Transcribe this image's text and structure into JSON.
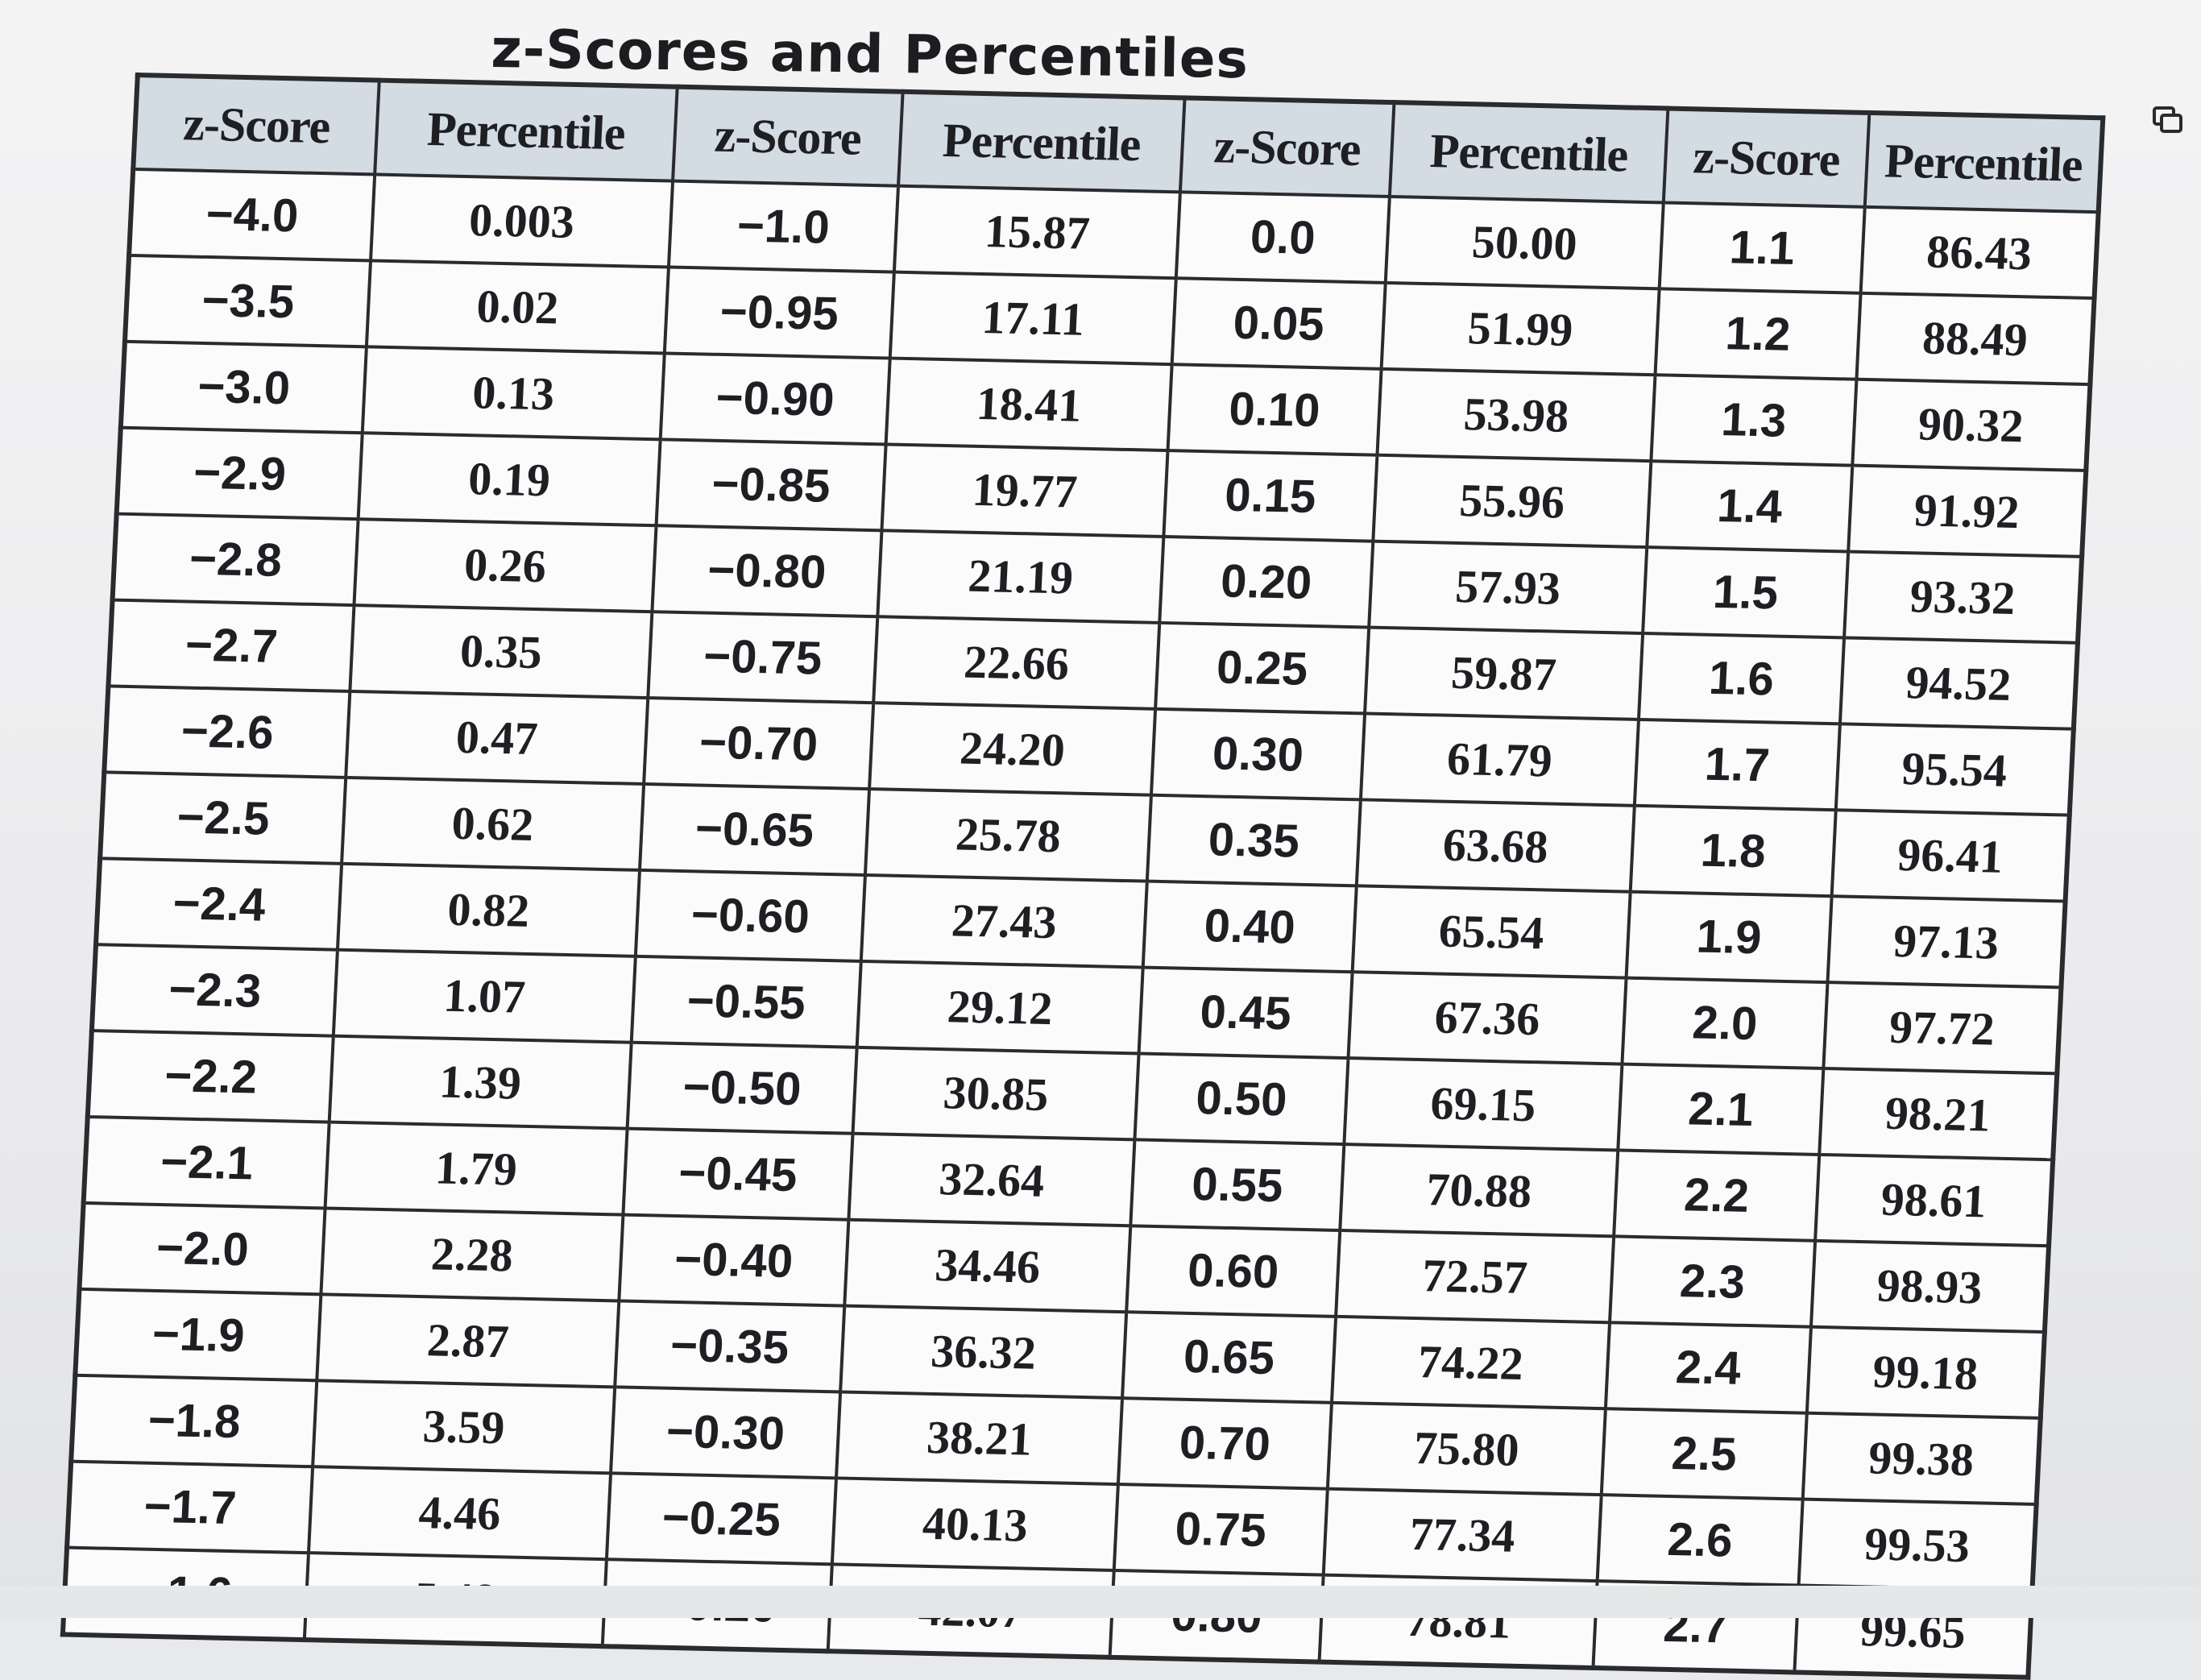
{
  "document": {
    "title": "z-Scores and Percentiles",
    "headers": [
      "z-Score",
      "Percentile",
      "z-Score",
      "Percentile",
      "z-Score",
      "Percentile",
      "z-Score",
      "Percentile"
    ],
    "rows": [
      [
        "−4.0",
        "0.003",
        "−1.0",
        "15.87",
        "0.0",
        "50.00",
        "1.1",
        "86.43"
      ],
      [
        "−3.5",
        "0.02",
        "−0.95",
        "17.11",
        "0.05",
        "51.99",
        "1.2",
        "88.49"
      ],
      [
        "−3.0",
        "0.13",
        "−0.90",
        "18.41",
        "0.10",
        "53.98",
        "1.3",
        "90.32"
      ],
      [
        "−2.9",
        "0.19",
        "−0.85",
        "19.77",
        "0.15",
        "55.96",
        "1.4",
        "91.92"
      ],
      [
        "−2.8",
        "0.26",
        "−0.80",
        "21.19",
        "0.20",
        "57.93",
        "1.5",
        "93.32"
      ],
      [
        "−2.7",
        "0.35",
        "−0.75",
        "22.66",
        "0.25",
        "59.87",
        "1.6",
        "94.52"
      ],
      [
        "−2.6",
        "0.47",
        "−0.70",
        "24.20",
        "0.30",
        "61.79",
        "1.7",
        "95.54"
      ],
      [
        "−2.5",
        "0.62",
        "−0.65",
        "25.78",
        "0.35",
        "63.68",
        "1.8",
        "96.41"
      ],
      [
        "−2.4",
        "0.82",
        "−0.60",
        "27.43",
        "0.40",
        "65.54",
        "1.9",
        "97.13"
      ],
      [
        "−2.3",
        "1.07",
        "−0.55",
        "29.12",
        "0.45",
        "67.36",
        "2.0",
        "97.72"
      ],
      [
        "−2.2",
        "1.39",
        "−0.50",
        "30.85",
        "0.50",
        "69.15",
        "2.1",
        "98.21"
      ],
      [
        "−2.1",
        "1.79",
        "−0.45",
        "32.64",
        "0.55",
        "70.88",
        "2.2",
        "98.61"
      ],
      [
        "−2.0",
        "2.28",
        "−0.40",
        "34.46",
        "0.60",
        "72.57",
        "2.3",
        "98.93"
      ],
      [
        "−1.9",
        "2.87",
        "−0.35",
        "36.32",
        "0.65",
        "74.22",
        "2.4",
        "99.18"
      ],
      [
        "−1.8",
        "3.59",
        "−0.30",
        "38.21",
        "0.70",
        "75.80",
        "2.5",
        "99.38"
      ],
      [
        "−1.7",
        "4.46",
        "−0.25",
        "40.13",
        "0.75",
        "77.34",
        "2.6",
        "99.53"
      ],
      [
        "−1.6",
        "5.48",
        "−0.20",
        "42.07",
        "0.80",
        "78.81",
        "2.7",
        "99.65"
      ]
    ]
  },
  "icons": {
    "edge": "copy-icon"
  }
}
